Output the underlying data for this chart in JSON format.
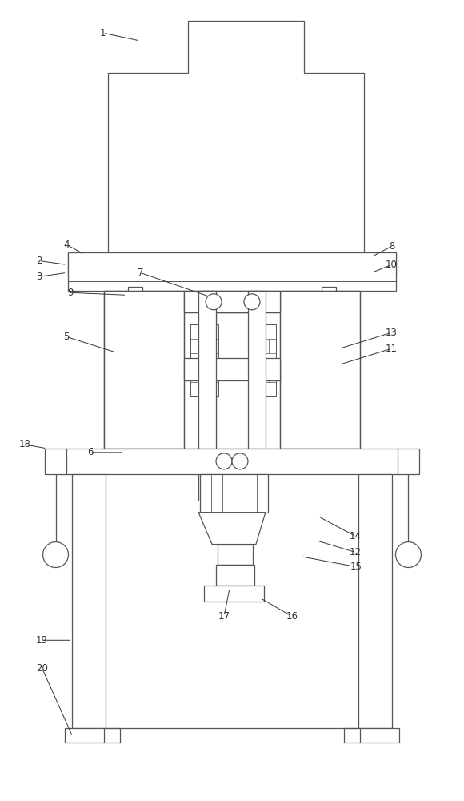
{
  "bg_color": "#ffffff",
  "line_color": "#555555",
  "fig_width": 5.8,
  "fig_height": 10.0,
  "dpi": 100
}
